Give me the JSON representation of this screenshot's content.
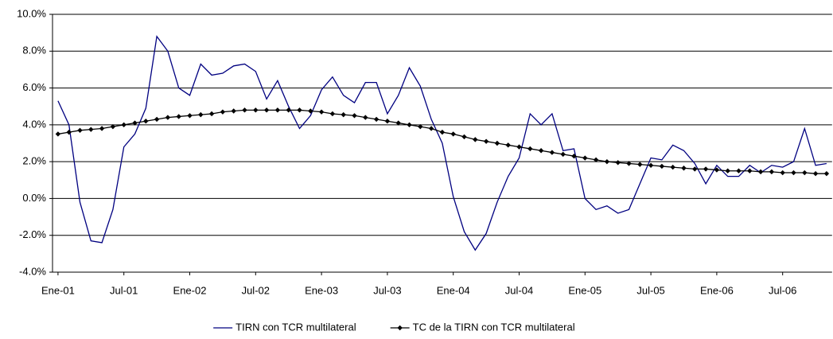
{
  "chart_data": {
    "type": "line",
    "categories": [
      "Ene-01",
      null,
      null,
      null,
      null,
      null,
      "Jul-01",
      null,
      null,
      null,
      null,
      null,
      "Ene-02",
      null,
      null,
      null,
      null,
      null,
      "Jul-02",
      null,
      null,
      null,
      null,
      null,
      "Ene-03",
      null,
      null,
      null,
      null,
      null,
      "Jul-03",
      null,
      null,
      null,
      null,
      null,
      "Ene-04",
      null,
      null,
      null,
      null,
      null,
      "Jul-04",
      null,
      null,
      null,
      null,
      null,
      "Ene-05",
      null,
      null,
      null,
      null,
      null,
      "Jul-05",
      null,
      null,
      null,
      null,
      null,
      "Ene-06",
      null,
      null,
      null,
      null,
      null,
      "Jul-06",
      null,
      null,
      null,
      null
    ],
    "series": [
      {
        "name": "TIRN con TCR multilateral",
        "color": "#000080",
        "marker": false,
        "values": [
          5.3,
          4.0,
          -0.2,
          -2.3,
          -2.4,
          -0.6,
          2.8,
          3.5,
          4.9,
          8.8,
          8.0,
          6.0,
          5.6,
          7.3,
          6.7,
          6.8,
          7.2,
          7.3,
          6.9,
          5.4,
          6.4,
          5.0,
          3.8,
          4.5,
          5.9,
          6.6,
          5.6,
          5.2,
          6.3,
          6.3,
          4.6,
          5.6,
          7.1,
          6.1,
          4.3,
          3.0,
          0.1,
          -1.8,
          -2.8,
          -1.9,
          -0.2,
          1.2,
          2.2,
          4.6,
          4.0,
          4.6,
          2.6,
          2.7,
          0.0,
          -0.6,
          -0.4,
          -0.8,
          -0.6,
          0.8,
          2.2,
          2.1,
          2.9,
          2.6,
          1.9,
          0.8,
          1.8,
          1.2,
          1.2,
          1.8,
          1.4,
          1.8,
          1.7,
          2.0,
          3.8,
          1.8,
          1.9
        ]
      },
      {
        "name": "TC de la TIRN con TCR multilateral",
        "color": "#000000",
        "marker": true,
        "values": [
          3.5,
          3.6,
          3.7,
          3.75,
          3.8,
          3.9,
          4.0,
          4.1,
          4.2,
          4.3,
          4.4,
          4.45,
          4.5,
          4.55,
          4.6,
          4.7,
          4.75,
          4.8,
          4.8,
          4.8,
          4.8,
          4.8,
          4.8,
          4.75,
          4.7,
          4.6,
          4.55,
          4.5,
          4.4,
          4.3,
          4.2,
          4.1,
          4.0,
          3.9,
          3.8,
          3.6,
          3.5,
          3.35,
          3.2,
          3.1,
          3.0,
          2.9,
          2.8,
          2.7,
          2.6,
          2.5,
          2.4,
          2.3,
          2.2,
          2.1,
          2.0,
          1.95,
          1.9,
          1.85,
          1.8,
          1.75,
          1.7,
          1.65,
          1.6,
          1.6,
          1.55,
          1.5,
          1.5,
          1.5,
          1.45,
          1.45,
          1.4,
          1.4,
          1.4,
          1.35,
          1.35
        ]
      }
    ],
    "ylim": [
      -4,
      10
    ],
    "yticks": [
      {
        "value": -4,
        "label": "-4.0%"
      },
      {
        "value": -2,
        "label": "-2.0%"
      },
      {
        "value": 0,
        "label": "0.0%"
      },
      {
        "value": 2,
        "label": "2.0%"
      },
      {
        "value": 4,
        "label": "4.0%"
      },
      {
        "value": 6,
        "label": "6.0%"
      },
      {
        "value": 8,
        "label": "8.0%"
      },
      {
        "value": 10,
        "label": "10.0%"
      }
    ],
    "grid": true,
    "legend": "bottom"
  }
}
